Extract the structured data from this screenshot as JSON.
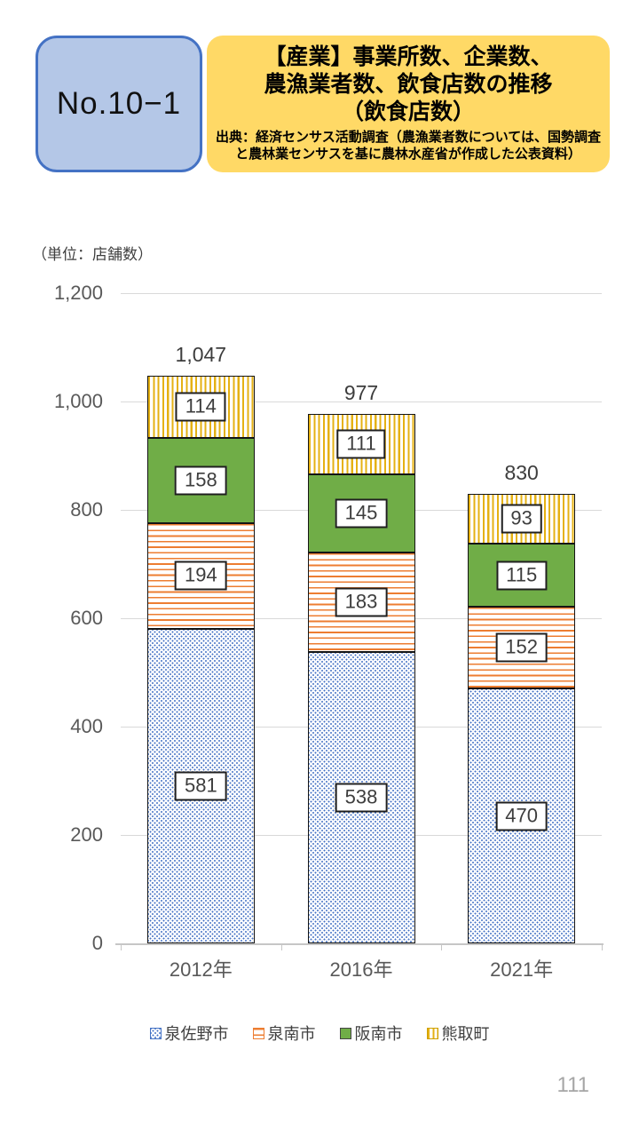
{
  "header": {
    "no_label": "No.10−1",
    "title_lines": [
      "【産業】事業所数、企業数、",
      "農漁業者数、飲食店数の推移",
      "（飲食店数）"
    ],
    "source_text": "出典：経済センサス活動調査（農漁業者数については、国勢調査と農林業センサスを基に農林水産省が作成した公表資料）",
    "badge_fill": "#b4c7e7",
    "badge_border": "#4472c4",
    "title_fill": "#ffd966"
  },
  "chart_data": {
    "type": "bar",
    "stacked": true,
    "title": "【産業】事業所数、企業数、農漁業者数、飲食店数の推移（飲食店数）",
    "unit_label": "（単位：店舗数）",
    "categories": [
      "2012年",
      "2016年",
      "2021年"
    ],
    "series": [
      {
        "name": "泉佐野市",
        "values": [
          581,
          538,
          470
        ],
        "pattern": "dots",
        "color": "#4472c4",
        "swatch_border": "#4472c4"
      },
      {
        "name": "泉南市",
        "values": [
          194,
          183,
          152
        ],
        "pattern": "hstripes",
        "color": "#ed7d31",
        "swatch_border": "#ed7d31"
      },
      {
        "name": "阪南市",
        "values": [
          158,
          145,
          115
        ],
        "pattern": "solid",
        "color": "#70ad47",
        "swatch_border": "#454545"
      },
      {
        "name": "熊取町",
        "values": [
          114,
          111,
          93
        ],
        "pattern": "vstripes",
        "color": "#e5b113",
        "swatch_border": "#cfa000"
      }
    ],
    "totals": [
      "1,047",
      "977",
      "830"
    ],
    "y_ticks": [
      {
        "label": "0",
        "value": 0
      },
      {
        "label": "200",
        "value": 200
      },
      {
        "label": "400",
        "value": 400
      },
      {
        "label": "600",
        "value": 600
      },
      {
        "label": "800",
        "value": 800
      },
      {
        "label": "1,000",
        "value": 1000
      },
      {
        "label": "1,200",
        "value": 1200
      }
    ],
    "ylim": [
      0,
      1200
    ],
    "grid": true,
    "legend_position": "bottom"
  },
  "page_number": "111"
}
